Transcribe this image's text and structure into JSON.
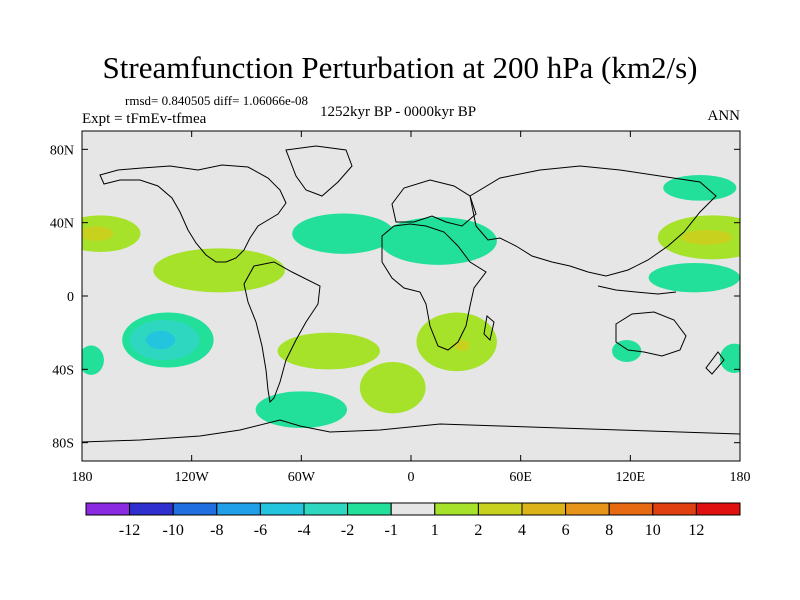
{
  "chart_data": {
    "type": "map_contour",
    "title": "Streamfunction Perturbation at 200 hPa (km2/s)",
    "rmsd_diff": "rmsd= 0.840505 diff= 1.06066e-08",
    "expt": "Expt = tFmEv-tfmea",
    "period": "1252kyr BP - 0000kyr BP",
    "season": "ANN",
    "lon_range": [
      -180,
      180
    ],
    "lat_range": [
      -90,
      90
    ],
    "x_ticks": [
      {
        "lon": -180,
        "label": "180"
      },
      {
        "lon": -120,
        "label": "120W"
      },
      {
        "lon": -60,
        "label": "60W"
      },
      {
        "lon": 0,
        "label": "0"
      },
      {
        "lon": 60,
        "label": "60E"
      },
      {
        "lon": 120,
        "label": "120E"
      },
      {
        "lon": 180,
        "label": "180"
      }
    ],
    "y_ticks": [
      {
        "lat": 80,
        "label": "80N"
      },
      {
        "lat": 40,
        "label": "40N"
      },
      {
        "lat": 0,
        "label": "0"
      },
      {
        "lat": -40,
        "label": "40S"
      },
      {
        "lat": -80,
        "label": "80S"
      }
    ],
    "colorbar": {
      "colors": [
        "#8a2be2",
        "#2f2fcf",
        "#1f6fe0",
        "#1fa0e8",
        "#22c4de",
        "#2ed8c0",
        "#22e09a",
        "#e6e6e6",
        "#a6e22a",
        "#c8d21e",
        "#dcb41a",
        "#e6941a",
        "#e66a12",
        "#e04010",
        "#e01010"
      ],
      "labels": [
        "-12",
        "-10",
        "-8",
        "-6",
        "-4",
        "-2",
        "-1",
        "1",
        "2",
        "4",
        "6",
        "8",
        "10",
        "12"
      ]
    },
    "anomalies": [
      {
        "name": "N Pacific east positive",
        "lon": -170,
        "lat": 34,
        "rlon": 22,
        "rlat": 10,
        "level": 2
      },
      {
        "name": "N Pacific east core",
        "lon": -172,
        "lat": 34,
        "rlon": 9,
        "rlat": 4,
        "level": 4
      },
      {
        "name": "N Pacific west positive",
        "lon": 165,
        "lat": 32,
        "rlon": 30,
        "rlat": 12,
        "level": 2
      },
      {
        "name": "N Pacific west core",
        "lon": 162,
        "lat": 32,
        "rlon": 14,
        "rlat": 4,
        "level": 4
      },
      {
        "name": "Tropical E Pacific positive",
        "lon": -105,
        "lat": 14,
        "rlon": 36,
        "rlat": 12,
        "level": 2
      },
      {
        "name": "N Atlantic negative",
        "lon": -37,
        "lat": 34,
        "rlon": 28,
        "rlat": 11,
        "level": -1
      },
      {
        "name": "N Africa negative",
        "lon": 15,
        "lat": 30,
        "rlon": 32,
        "rlat": 13,
        "level": -1
      },
      {
        "name": "NW Pacific negative",
        "lon": 158,
        "lat": 59,
        "rlon": 20,
        "rlat": 7,
        "level": -1
      },
      {
        "name": "W Pacific negative",
        "lon": 155,
        "lat": 10,
        "rlon": 25,
        "rlat": 8,
        "level": -1
      },
      {
        "name": "S Pacific negative",
        "lon": -133,
        "lat": -24,
        "rlon": 25,
        "rlat": 15,
        "level": -1
      },
      {
        "name": "S Pacific core",
        "lon": -135,
        "lat": -24,
        "rlon": 19,
        "rlat": 11,
        "level": -2
      },
      {
        "name": "S Pacific inner",
        "lon": -137,
        "lat": -24,
        "rlon": 8,
        "rlat": 5,
        "level": -4
      },
      {
        "name": "S Atlantic positive",
        "lon": -45,
        "lat": -30,
        "rlon": 28,
        "rlat": 10,
        "level": 2
      },
      {
        "name": "S Atlantic south positive",
        "lon": -10,
        "lat": -50,
        "rlon": 18,
        "rlat": 14,
        "level": 2
      },
      {
        "name": "S Africa positive",
        "lon": 25,
        "lat": -25,
        "rlon": 22,
        "rlat": 16,
        "level": 2
      },
      {
        "name": "S Africa core",
        "lon": 28,
        "lat": -27,
        "rlon": 4,
        "rlat": 3,
        "level": 4
      },
      {
        "name": "Drake Passage negative",
        "lon": -60,
        "lat": -62,
        "rlon": 25,
        "rlat": 10,
        "level": -1
      },
      {
        "name": "SE Pacific west negative",
        "lon": -175,
        "lat": -35,
        "rlon": 7,
        "rlat": 8,
        "level": -1
      },
      {
        "name": "SE Pacific east negative",
        "lon": 177,
        "lat": -34,
        "rlon": 8,
        "rlat": 8,
        "level": -1
      },
      {
        "name": "Australia negative",
        "lon": 118,
        "lat": -30,
        "rlon": 8,
        "rlat": 6,
        "level": -1
      }
    ]
  }
}
